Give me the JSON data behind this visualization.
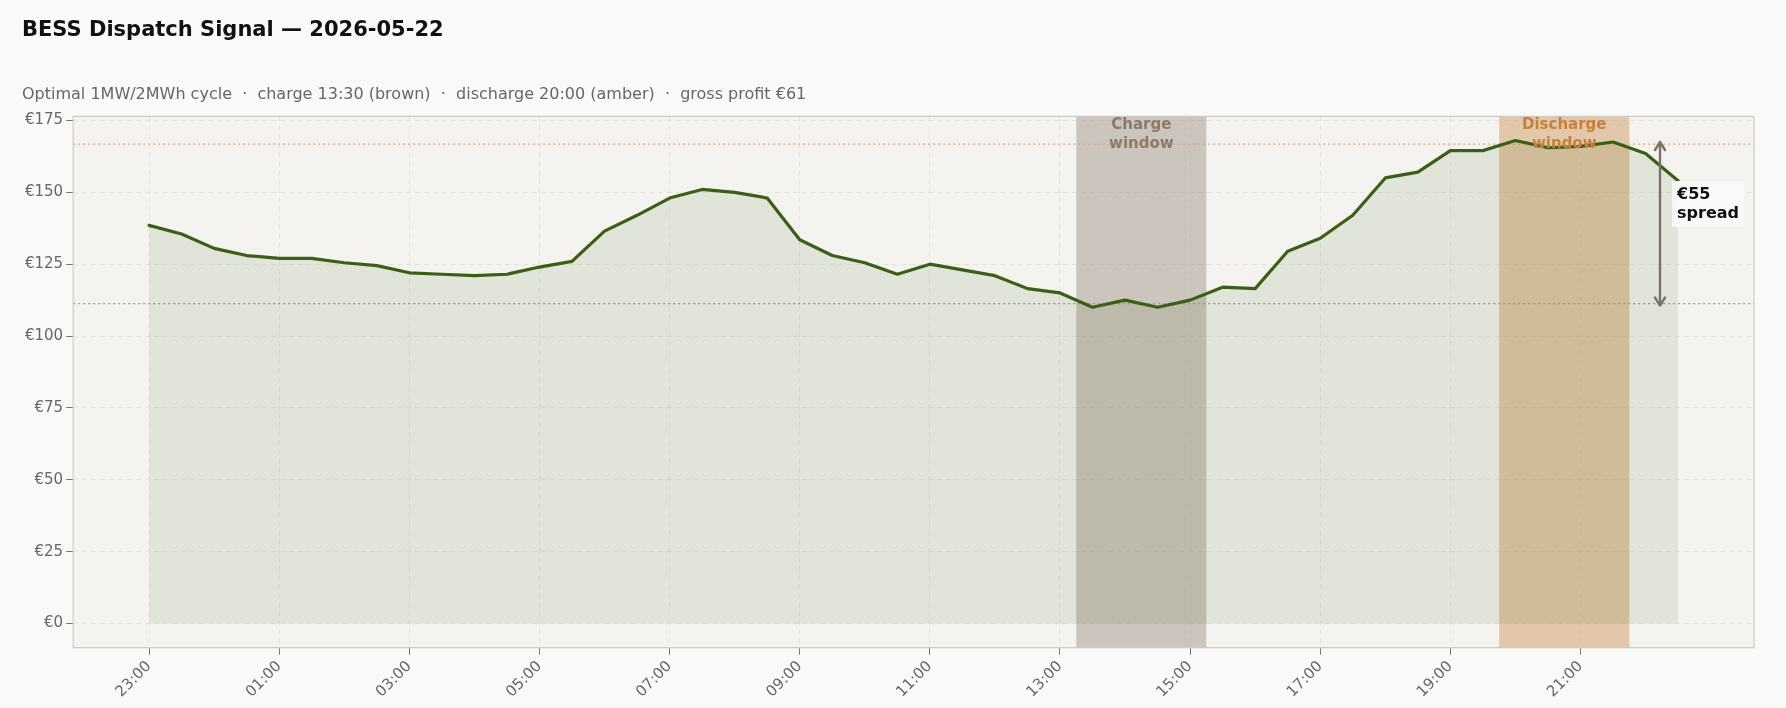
{
  "chart_data": {
    "type": "area",
    "title": "BESS Dispatch Signal — 2026-05-22",
    "subtitle": "Optimal 1MW/2MWh cycle  ·  charge 13:30 (brown)  ·  discharge 20:00 (amber)  ·  gross profit €61",
    "x": [
      "2026-05-21T23:00",
      "2026-05-21T23:30",
      "2026-05-22T00:00",
      "2026-05-22T00:30",
      "2026-05-22T01:00",
      "2026-05-22T01:30",
      "2026-05-22T02:00",
      "2026-05-22T02:30",
      "2026-05-22T03:00",
      "2026-05-22T03:30",
      "2026-05-22T04:00",
      "2026-05-22T04:30",
      "2026-05-22T05:00",
      "2026-05-22T05:30",
      "2026-05-22T06:00",
      "2026-05-22T06:30",
      "2026-05-22T07:00",
      "2026-05-22T07:30",
      "2026-05-22T08:00",
      "2026-05-22T08:30",
      "2026-05-22T09:00",
      "2026-05-22T09:30",
      "2026-05-22T10:00",
      "2026-05-22T10:30",
      "2026-05-22T11:00",
      "2026-05-22T11:30",
      "2026-05-22T12:00",
      "2026-05-22T12:30",
      "2026-05-22T13:00",
      "2026-05-22T13:30",
      "2026-05-22T14:00",
      "2026-05-22T14:30",
      "2026-05-22T15:00",
      "2026-05-22T15:30",
      "2026-05-22T16:00",
      "2026-05-22T16:30",
      "2026-05-22T17:00",
      "2026-05-22T17:30",
      "2026-05-22T18:00",
      "2026-05-22T18:30",
      "2026-05-22T19:00",
      "2026-05-22T19:30",
      "2026-05-22T20:00",
      "2026-05-22T20:30",
      "2026-05-22T21:00",
      "2026-05-22T21:30",
      "2026-05-22T22:00",
      "2026-05-22T22:30"
    ],
    "series": [
      {
        "color": "#3a5f17",
        "values": [
          138.5,
          135.5,
          130.5,
          128,
          127,
          127,
          125.5,
          124.5,
          122,
          121.5,
          121,
          121.5,
          124,
          126,
          136.5,
          142,
          148,
          151,
          150,
          148,
          133.5,
          128,
          125.5,
          121.5,
          125,
          123,
          121,
          116.5,
          115,
          110,
          112.5,
          110,
          112.5,
          117,
          116.5,
          129.5,
          134,
          142,
          155,
          157,
          164.5,
          164.5,
          168,
          165.5,
          166,
          167.5,
          163.5,
          154
        ]
      }
    ],
    "xlim": [
      "2026-05-21T21:50",
      "2026-05-22T23:40"
    ],
    "xticks": [
      {
        "value": "2026-05-21T23:00",
        "label": "23:00"
      },
      {
        "value": "2026-05-22T01:00",
        "label": "01:00"
      },
      {
        "value": "2026-05-22T03:00",
        "label": "03:00"
      },
      {
        "value": "2026-05-22T05:00",
        "label": "05:00"
      },
      {
        "value": "2026-05-22T07:00",
        "label": "07:00"
      },
      {
        "value": "2026-05-22T09:00",
        "label": "09:00"
      },
      {
        "value": "2026-05-22T11:00",
        "label": "11:00"
      },
      {
        "value": "2026-05-22T13:00",
        "label": "13:00"
      },
      {
        "value": "2026-05-22T15:00",
        "label": "15:00"
      },
      {
        "value": "2026-05-22T17:00",
        "label": "17:00"
      },
      {
        "value": "2026-05-22T19:00",
        "label": "19:00"
      },
      {
        "value": "2026-05-22T21:00",
        "label": "21:00"
      }
    ],
    "ylim": [
      -8.4,
      176.4
    ],
    "yticks": [
      {
        "value": 0,
        "label": "€0"
      },
      {
        "value": 25,
        "label": "€25"
      },
      {
        "value": 50,
        "label": "€50"
      },
      {
        "value": 75,
        "label": "€75"
      },
      {
        "value": 100,
        "label": "€100"
      },
      {
        "value": 125,
        "label": "€125"
      },
      {
        "value": 150,
        "label": "€150"
      },
      {
        "value": 175,
        "label": "€175"
      }
    ],
    "bands": [
      {
        "axis": "x",
        "from": "2026-05-22T13:15",
        "to": "2026-05-22T15:15",
        "label": "Charge\nwindow",
        "color": "#8c7b6b"
      },
      {
        "axis": "x",
        "from": "2026-05-22T19:45",
        "to": "2026-05-22T21:45",
        "label": "Discharge\nwindow",
        "color": "#c8813a"
      }
    ],
    "ref_lines": [
      {
        "axis": "y",
        "value": 111.25,
        "color": "#a09a90",
        "line_style": "dotted"
      },
      {
        "axis": "y",
        "value": 166.75,
        "color": "#dba77a",
        "line_style": "dotted"
      }
    ],
    "annotations": [
      "€55\nspread"
    ],
    "grid": true,
    "legend": false,
    "marker": "none",
    "line_style": "solid"
  }
}
